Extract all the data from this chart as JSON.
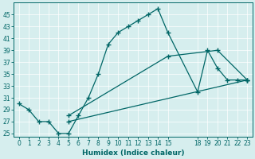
{
  "xlabel": "Humidex (Indice chaleur)",
  "bg_color": "#d6eeee",
  "line_color": "#006666",
  "xlim": [
    -0.5,
    23.5
  ],
  "ylim": [
    24.5,
    47
  ],
  "xticks": [
    0,
    1,
    2,
    3,
    4,
    5,
    6,
    7,
    8,
    9,
    10,
    11,
    12,
    13,
    14,
    15,
    18,
    19,
    20,
    21,
    22,
    23
  ],
  "yticks": [
    25,
    27,
    29,
    31,
    33,
    35,
    37,
    39,
    41,
    43,
    45
  ],
  "series": [
    {
      "x": [
        0,
        1,
        2,
        3,
        4,
        5,
        6,
        7,
        8,
        9,
        10,
        11,
        12,
        13,
        14,
        15,
        18,
        19,
        20,
        21,
        22,
        23
      ],
      "y": [
        30,
        29,
        27,
        27,
        25,
        25,
        28,
        31,
        35,
        40,
        42,
        43,
        44,
        45,
        46,
        42,
        32,
        39,
        36,
        34,
        34,
        34
      ]
    },
    {
      "x": [
        5,
        15,
        20,
        23
      ],
      "y": [
        28,
        38,
        39,
        34
      ]
    },
    {
      "x": [
        5,
        23
      ],
      "y": [
        27,
        34
      ]
    }
  ]
}
